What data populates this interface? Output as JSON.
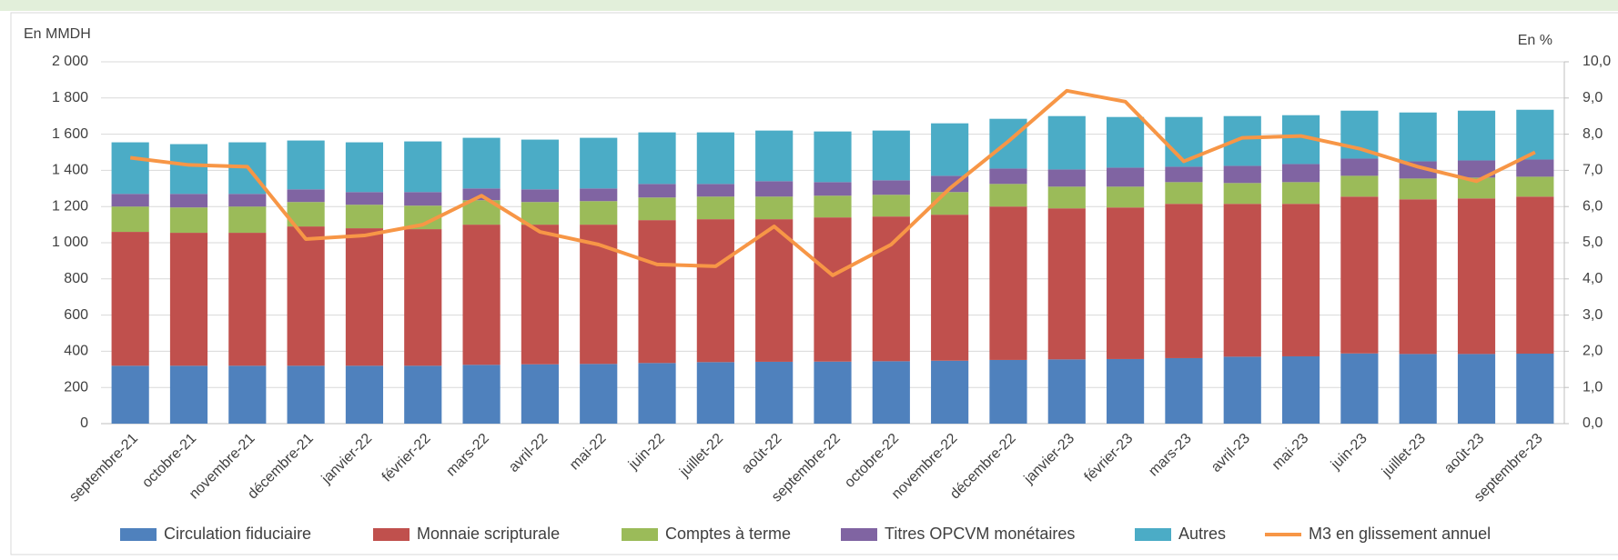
{
  "chart_data": {
    "type": "bar",
    "stacked": true,
    "y_label": "En MMDH",
    "y2_label": "En %",
    "categories": [
      "septembre-21",
      "octobre-21",
      "novembre-21",
      "décembre-21",
      "janvier-22",
      "février-22",
      "mars-22",
      "avril-22",
      "mai-22",
      "juin-22",
      "juillet-22",
      "août-22",
      "septembre-22",
      "octobre-22",
      "novembre-22",
      "décembre-22",
      "janvier-23",
      "février-23",
      "mars-23",
      "avril-23",
      "mai-23",
      "juin-23",
      "juillet-23",
      "août-23",
      "septembre-23"
    ],
    "series": [
      {
        "name": "Circulation fiduciaire",
        "type": "bar",
        "color": "#4f81bd",
        "values": [
          320,
          320,
          320,
          320,
          320,
          320,
          325,
          328,
          330,
          335,
          340,
          342,
          343,
          345,
          348,
          352,
          355,
          357,
          362,
          370,
          372,
          388,
          385,
          385,
          387
        ]
      },
      {
        "name": "Monnaie scripturale",
        "type": "bar",
        "color": "#c0504d",
        "values": [
          740,
          735,
          735,
          770,
          760,
          755,
          775,
          772,
          770,
          790,
          790,
          788,
          797,
          800,
          807,
          848,
          835,
          838,
          853,
          845,
          843,
          867,
          855,
          860,
          868
        ]
      },
      {
        "name": "Comptes à terme",
        "type": "bar",
        "color": "#9bbb59",
        "values": [
          140,
          140,
          145,
          135,
          130,
          130,
          135,
          125,
          130,
          125,
          125,
          125,
          120,
          120,
          125,
          125,
          120,
          115,
          120,
          115,
          120,
          115,
          115,
          115,
          110
        ]
      },
      {
        "name": "Titres OPCVM monétaires",
        "type": "bar",
        "color": "#8064a2",
        "values": [
          70,
          75,
          70,
          70,
          70,
          75,
          65,
          70,
          70,
          75,
          70,
          85,
          75,
          80,
          90,
          85,
          95,
          105,
          85,
          95,
          100,
          95,
          95,
          95,
          95
        ]
      },
      {
        "name": "Autres",
        "type": "bar",
        "color": "#4bacc6",
        "values": [
          285,
          275,
          285,
          270,
          275,
          280,
          280,
          275,
          280,
          285,
          285,
          280,
          280,
          275,
          290,
          275,
          295,
          280,
          275,
          275,
          270,
          265,
          270,
          275,
          275
        ]
      },
      {
        "name": "M3 en glissement annuel",
        "type": "line",
        "axis": "y2",
        "color": "#f79646",
        "values": [
          7.35,
          7.15,
          7.1,
          5.1,
          5.2,
          5.5,
          6.3,
          5.3,
          4.95,
          4.4,
          4.35,
          5.45,
          4.1,
          4.95,
          6.5,
          7.8,
          9.2,
          8.9,
          7.25,
          7.9,
          7.95,
          7.6,
          7.1,
          6.7,
          7.5
        ]
      }
    ],
    "ylim": [
      0,
      2000
    ],
    "yticks": [
      0,
      200,
      400,
      600,
      800,
      {
        "value": 1000,
        "label": "1 000"
      },
      {
        "value": 1200,
        "label": "1 200"
      },
      {
        "value": 1400,
        "label": "1 400"
      },
      {
        "value": 1600,
        "label": "1 600"
      },
      {
        "value": 1800,
        "label": "1 800"
      },
      {
        "value": 2000,
        "label": "2 000"
      }
    ],
    "y2lim": [
      0,
      10
    ],
    "y2ticks": [
      {
        "value": 0,
        "label": "0,0"
      },
      {
        "value": 1,
        "label": "1,0"
      },
      {
        "value": 2,
        "label": "2,0"
      },
      {
        "value": 3,
        "label": "3,0"
      },
      {
        "value": 4,
        "label": "4,0"
      },
      {
        "value": 5,
        "label": "5,0"
      },
      {
        "value": 6,
        "label": "6,0"
      },
      {
        "value": 7,
        "label": "7,0"
      },
      {
        "value": 8,
        "label": "8,0"
      },
      {
        "value": 9,
        "label": "9,0"
      },
      {
        "value": 10,
        "label": "10,0"
      }
    ],
    "legend": "bottom"
  }
}
